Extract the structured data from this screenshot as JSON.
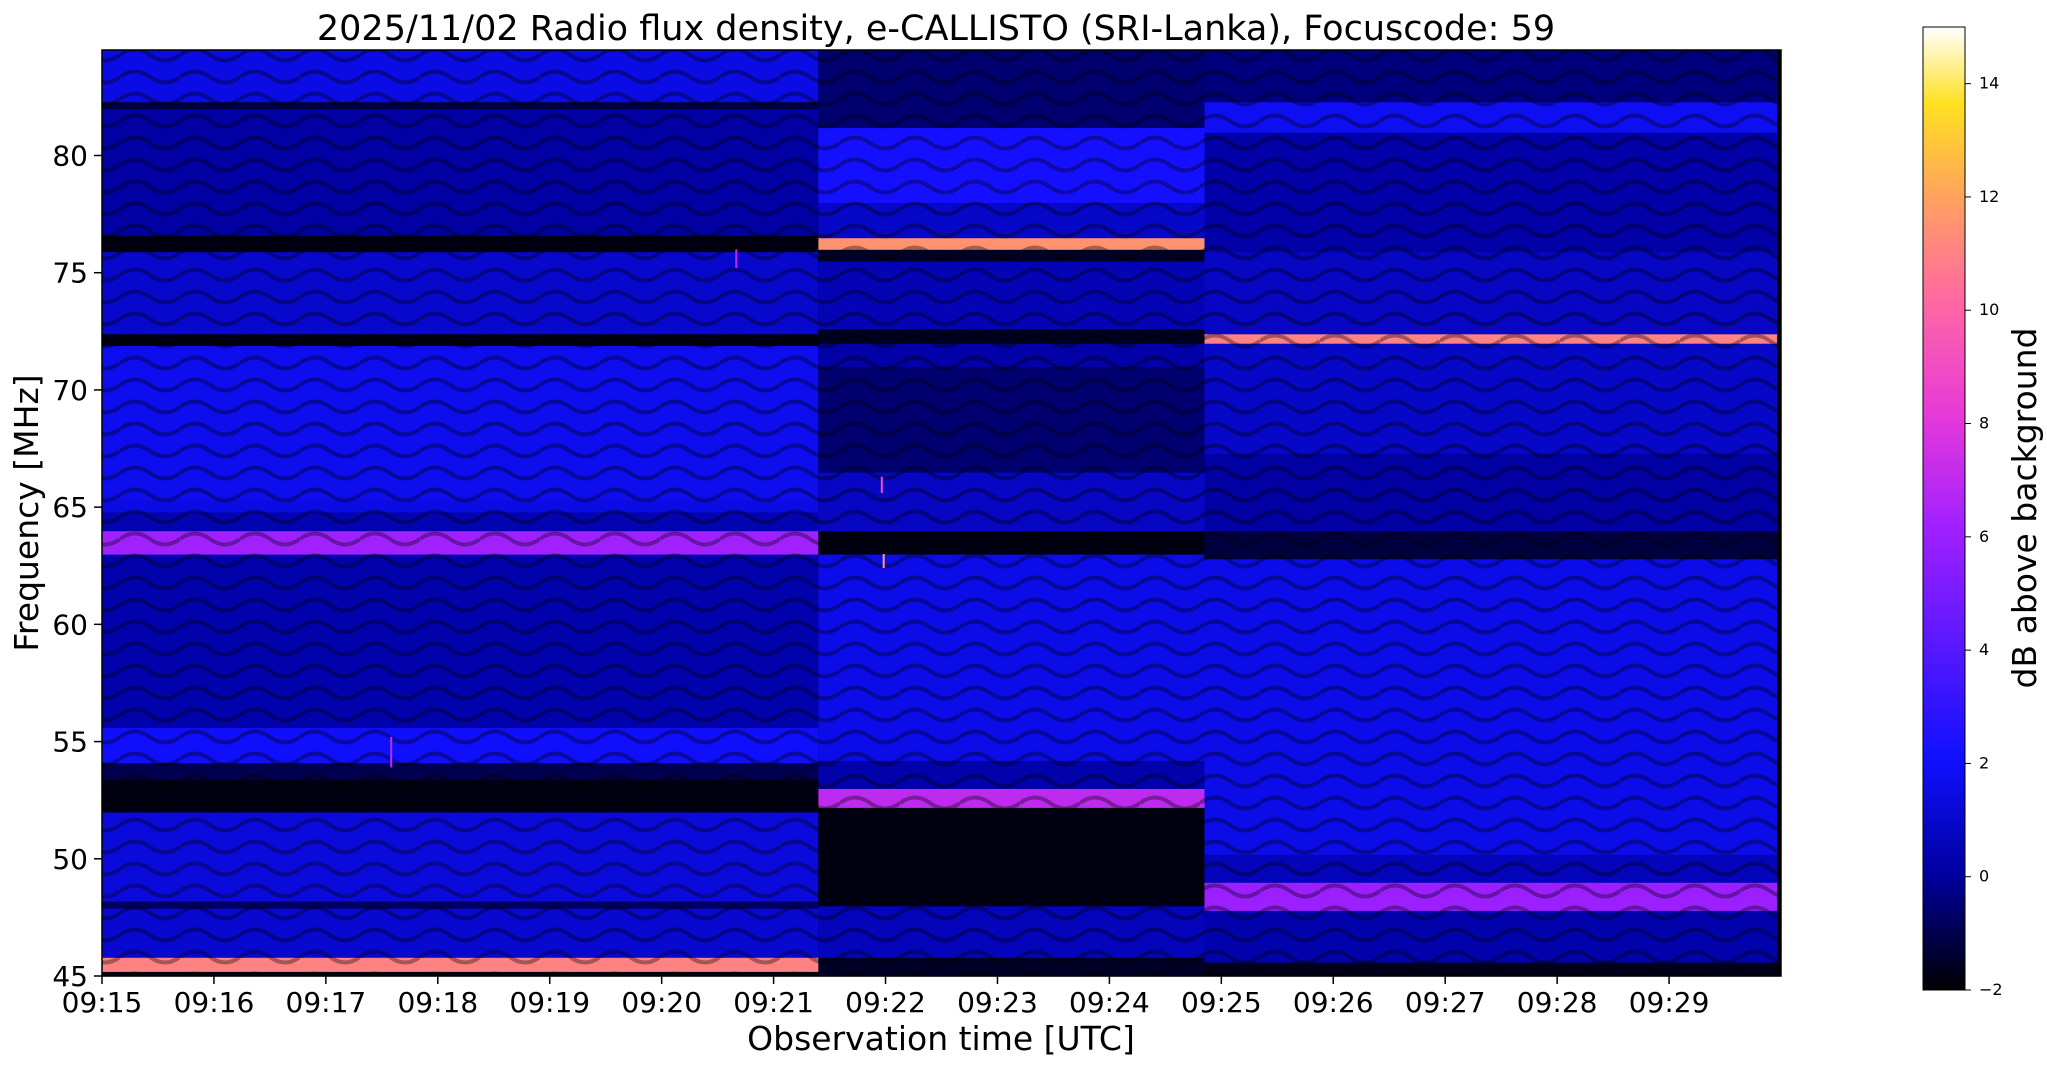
{
  "chart_data": {
    "type": "heatmap",
    "title": "2025/11/02  Radio flux density, e-CALLISTO (SRI-Lanka), Focuscode: 59",
    "xlabel": "Observation time [UTC]",
    "ylabel": "Frequency [MHz]",
    "colorbar_label": "dB above background",
    "x_ticks": [
      "09:15",
      "09:16",
      "09:17",
      "09:18",
      "09:19",
      "09:20",
      "09:21",
      "09:22",
      "09:23",
      "09:24",
      "09:25",
      "09:26",
      "09:27",
      "09:28",
      "09:29"
    ],
    "x_range_minutes": [
      0,
      15
    ],
    "y_ticks": [
      45,
      50,
      55,
      60,
      65,
      70,
      75,
      80
    ],
    "ylim": [
      45,
      84.5
    ],
    "colorbar_ticks": [
      -2,
      0,
      2,
      4,
      6,
      8,
      10,
      12,
      14
    ],
    "clim": [
      -2,
      15
    ],
    "colormap": "gnuplot2",
    "segments": [
      {
        "start": "09:15",
        "end": "09:21:24",
        "bands": [
          {
            "f0": 45.0,
            "f1": 45.2,
            "db": -1.8
          },
          {
            "f0": 45.2,
            "f1": 45.8,
            "db": 11.0
          },
          {
            "f0": 45.8,
            "f1": 47.9,
            "db": 1.1
          },
          {
            "f0": 47.9,
            "f1": 48.2,
            "db": -0.8
          },
          {
            "f0": 48.2,
            "f1": 52.0,
            "db": 1.3
          },
          {
            "f0": 52.0,
            "f1": 53.4,
            "db": -1.8
          },
          {
            "f0": 53.4,
            "f1": 54.1,
            "db": -1.0
          },
          {
            "f0": 54.1,
            "f1": 55.6,
            "db": 2.0
          },
          {
            "f0": 55.6,
            "f1": 63.0,
            "db": 0.3
          },
          {
            "f0": 63.0,
            "f1": 64.0,
            "db": 6.2
          },
          {
            "f0": 64.0,
            "f1": 64.8,
            "db": 0.4
          },
          {
            "f0": 64.8,
            "f1": 65.3,
            "db": 1.5
          },
          {
            "f0": 65.3,
            "f1": 71.9,
            "db": 1.7
          },
          {
            "f0": 71.9,
            "f1": 72.4,
            "db": -1.8
          },
          {
            "f0": 72.4,
            "f1": 75.9,
            "db": 1.0
          },
          {
            "f0": 75.9,
            "f1": 76.6,
            "db": -1.8
          },
          {
            "f0": 76.6,
            "f1": 82.0,
            "db": 0.1
          },
          {
            "f0": 82.0,
            "f1": 82.3,
            "db": -1.2
          },
          {
            "f0": 82.3,
            "f1": 84.5,
            "db": 1.5
          }
        ]
      },
      {
        "start": "09:21:24",
        "end": "09:24:51",
        "bands": [
          {
            "f0": 45.0,
            "f1": 45.8,
            "db": -1.5
          },
          {
            "f0": 45.8,
            "f1": 48.0,
            "db": 0.6
          },
          {
            "f0": 48.0,
            "f1": 52.2,
            "db": -1.8
          },
          {
            "f0": 52.2,
            "f1": 53.0,
            "db": 7.0
          },
          {
            "f0": 53.0,
            "f1": 54.2,
            "db": 0.3
          },
          {
            "f0": 54.2,
            "f1": 63.0,
            "db": 1.6
          },
          {
            "f0": 63.0,
            "f1": 64.0,
            "db": -1.8
          },
          {
            "f0": 64.0,
            "f1": 66.5,
            "db": 0.8
          },
          {
            "f0": 66.5,
            "f1": 71.0,
            "db": -0.6
          },
          {
            "f0": 71.0,
            "f1": 72.0,
            "db": 0.2
          },
          {
            "f0": 72.0,
            "f1": 72.6,
            "db": -1.6
          },
          {
            "f0": 72.6,
            "f1": 75.5,
            "db": 0.5
          },
          {
            "f0": 75.5,
            "f1": 76.0,
            "db": -1.5
          },
          {
            "f0": 76.0,
            "f1": 76.5,
            "db": 11.5
          },
          {
            "f0": 76.5,
            "f1": 78.0,
            "db": 0.9
          },
          {
            "f0": 78.0,
            "f1": 81.2,
            "db": 2.2
          },
          {
            "f0": 81.2,
            "f1": 84.5,
            "db": -0.6
          }
        ]
      },
      {
        "start": "09:24:51",
        "end": "09:29:58",
        "bands": [
          {
            "f0": 45.0,
            "f1": 45.6,
            "db": -1.7
          },
          {
            "f0": 45.6,
            "f1": 47.8,
            "db": 0.3
          },
          {
            "f0": 47.8,
            "f1": 49.0,
            "db": 6.0
          },
          {
            "f0": 49.0,
            "f1": 50.2,
            "db": 0.6
          },
          {
            "f0": 50.2,
            "f1": 62.8,
            "db": 1.6
          },
          {
            "f0": 62.8,
            "f1": 64.0,
            "db": -1.2
          },
          {
            "f0": 64.0,
            "f1": 67.3,
            "db": 0.1
          },
          {
            "f0": 67.3,
            "f1": 72.0,
            "db": 0.9
          },
          {
            "f0": 72.0,
            "f1": 72.4,
            "db": 11.0
          },
          {
            "f0": 72.4,
            "f1": 75.9,
            "db": 0.8
          },
          {
            "f0": 75.9,
            "f1": 81.0,
            "db": 0.2
          },
          {
            "f0": 81.0,
            "f1": 82.3,
            "db": 1.8
          },
          {
            "f0": 82.3,
            "f1": 84.5,
            "db": -0.4
          }
        ]
      }
    ],
    "spikes": [
      {
        "time": "09:17:35",
        "f0": 53.9,
        "f1": 55.2,
        "db": 7
      },
      {
        "time": "09:20:40",
        "f0": 75.2,
        "f1": 76.0,
        "db": 7
      },
      {
        "time": "09:21:58",
        "f0": 65.6,
        "f1": 66.3,
        "db": 9
      },
      {
        "time": "09:21:59",
        "f0": 62.4,
        "f1": 63.0,
        "db": 12
      }
    ]
  }
}
